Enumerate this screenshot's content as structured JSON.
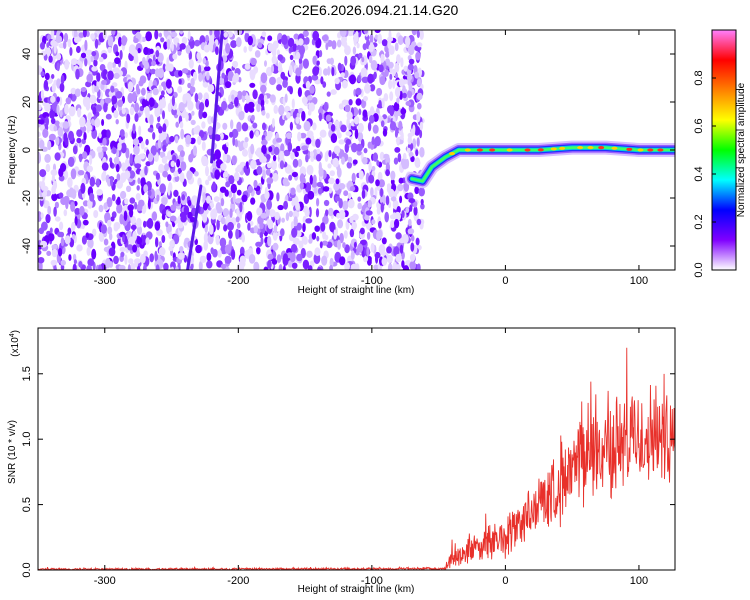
{
  "title": "C2E6.2026.094.21.14.G20",
  "chart_data": [
    {
      "type": "heatmap",
      "xlabel": "Height of straight line (km)",
      "ylabel": "Frequency (Hz)",
      "xlim": [
        -350,
        127
      ],
      "ylim": [
        -50,
        50
      ],
      "x_ticks": [
        "-300",
        "-200",
        "-100",
        "0",
        "100"
      ],
      "y_ticks": [
        "-40",
        "-20",
        "0",
        "20",
        "40"
      ],
      "colorbar": {
        "label": "Normalized spectral amplitude",
        "range": [
          0,
          1
        ],
        "ticks": [
          "0.0",
          "0.2",
          "0.4",
          "0.6",
          "0.8"
        ],
        "colors": [
          "#ffffff",
          "#8000ff",
          "#0000ff",
          "#00ffff",
          "#00ff00",
          "#ffff00",
          "#ff8000",
          "#ff0000",
          "#ff80ff"
        ]
      },
      "noise_region_x": [
        -350,
        -62
      ],
      "signal_track": [
        {
          "x": -70,
          "y": -12
        },
        {
          "x": -62,
          "y": -13
        },
        {
          "x": -55,
          "y": -7
        },
        {
          "x": -45,
          "y": -3
        },
        {
          "x": -35,
          "y": 0
        },
        {
          "x": -20,
          "y": 0
        },
        {
          "x": 0,
          "y": 0
        },
        {
          "x": 25,
          "y": 0
        },
        {
          "x": 50,
          "y": 1
        },
        {
          "x": 75,
          "y": 1
        },
        {
          "x": 100,
          "y": 0
        },
        {
          "x": 127,
          "y": 0
        }
      ],
      "streaks": [
        {
          "x1": -238,
          "y1": -50,
          "x2": -228,
          "y2": -15
        },
        {
          "x1": -220,
          "y1": -5,
          "x2": -212,
          "y2": 50
        }
      ]
    },
    {
      "type": "line",
      "xlabel": "Height of straight line (km)",
      "ylabel": "SNR (10 * v/v)",
      "y_scale_label": "(x10",
      "y_scale_exp": "4",
      "xlim": [
        -350,
        127
      ],
      "ylim": [
        0,
        1.85
      ],
      "x_ticks": [
        "-300",
        "-200",
        "-100",
        "0",
        "100"
      ],
      "y_ticks": [
        "0.0",
        "0.5",
        "1.0",
        "1.5"
      ],
      "color": "#e8302a",
      "envelope": [
        {
          "x": -350,
          "mean": 0.005,
          "amp": 0.01
        },
        {
          "x": -45,
          "mean": 0.01,
          "amp": 0.01
        },
        {
          "x": -40,
          "mean": 0.1,
          "amp": 0.12
        },
        {
          "x": -20,
          "mean": 0.18,
          "amp": 0.14
        },
        {
          "x": 0,
          "mean": 0.25,
          "amp": 0.2
        },
        {
          "x": 20,
          "mean": 0.45,
          "amp": 0.25
        },
        {
          "x": 40,
          "mean": 0.65,
          "amp": 0.35
        },
        {
          "x": 60,
          "mean": 0.85,
          "amp": 0.4
        },
        {
          "x": 80,
          "mean": 0.95,
          "amp": 0.45
        },
        {
          "x": 100,
          "mean": 1.0,
          "amp": 0.45
        },
        {
          "x": 115,
          "mean": 1.05,
          "amp": 0.5
        },
        {
          "x": 127,
          "mean": 1.1,
          "amp": 0.45
        }
      ]
    }
  ]
}
